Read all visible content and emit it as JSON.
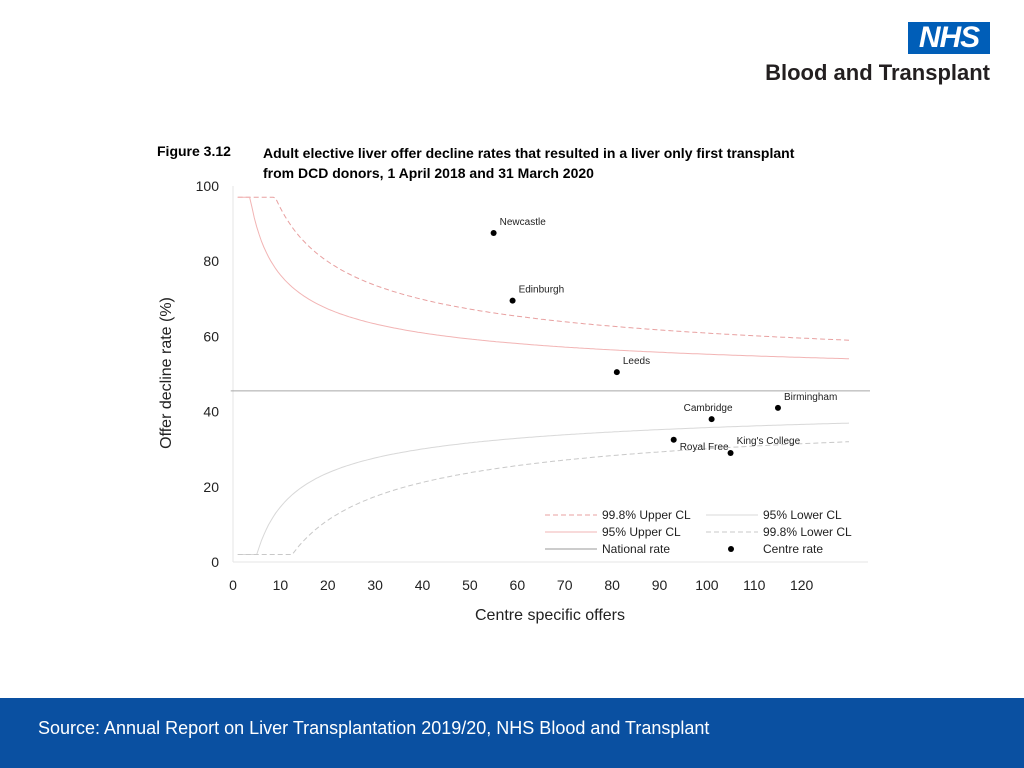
{
  "logo": {
    "nhs": "NHS",
    "org": "Blood and Transplant"
  },
  "figure": {
    "label": "Figure 3.12",
    "title": "Adult elective liver offer decline rates that resulted in a liver only first transplant from DCD donors, 1 April 2018 and 31 March 2020"
  },
  "chart_data": {
    "type": "scatter",
    "xlabel": "Centre specific offers",
    "ylabel": "Offer decline rate (%)",
    "xlim": [
      0,
      134
    ],
    "ylim": [
      0,
      100
    ],
    "xticks": [
      0,
      10,
      20,
      30,
      40,
      50,
      60,
      70,
      80,
      90,
      100,
      110,
      120
    ],
    "yticks": [
      0,
      20,
      40,
      60,
      80,
      100
    ],
    "national_rate": 45.5,
    "curves_x_range": [
      1,
      130
    ],
    "centres": [
      {
        "name": "Newcastle",
        "x": 55,
        "y": 87.5
      },
      {
        "name": "Edinburgh",
        "x": 59,
        "y": 69.5
      },
      {
        "name": "Leeds",
        "x": 81,
        "y": 50.5
      },
      {
        "name": "Birmingham",
        "x": 115,
        "y": 41
      },
      {
        "name": "Cambridge",
        "x": 101,
        "y": 38
      },
      {
        "name": "Royal Free",
        "x": 93,
        "y": 32.5
      },
      {
        "name": "King's College",
        "x": 105,
        "y": 29
      }
    ],
    "legend": {
      "placement": "bottom-right",
      "entries": [
        {
          "label": "99.8% Upper CL",
          "style": "dash",
          "color": "#e8a0a0"
        },
        {
          "label": "95% Lower CL",
          "style": "solid",
          "color": "#d8d8d8"
        },
        {
          "label": "95% Upper CL",
          "style": "solid",
          "color": "#f2b4b4"
        },
        {
          "label": "99.8% Lower CL",
          "style": "dash",
          "color": "#c8c8c8"
        },
        {
          "label": "National rate",
          "style": "line",
          "color": "#999999"
        },
        {
          "label": "Centre rate",
          "style": "dot",
          "color": "#000000"
        }
      ]
    }
  },
  "footer": {
    "source": "Source: Annual Report on Liver Transplantation 2019/20, NHS Blood and Transplant"
  }
}
